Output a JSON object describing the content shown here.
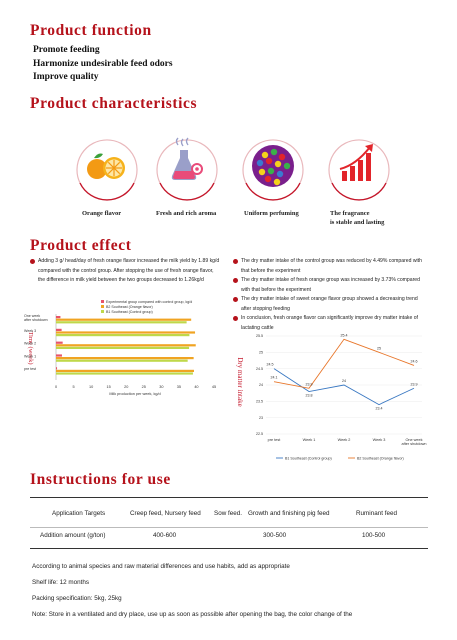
{
  "function": {
    "title": "Product function",
    "items": [
      "Promote feeding",
      "Harmonize undesirable feed odors",
      "Improve quality"
    ]
  },
  "characteristics": {
    "title": "Product characteristics",
    "items": [
      {
        "label": "Orange flavor",
        "icon": "orange-icon"
      },
      {
        "label": "Fresh and rich aroma",
        "icon": "aroma-flask-icon"
      },
      {
        "label": "Uniform perfuming",
        "icon": "colored-dots-icon"
      },
      {
        "label": "The fragrance is stable and lasting",
        "label_line1": "The fragrance",
        "label_line2": "is stable and lasting",
        "icon": "growth-arrow-icon"
      }
    ],
    "accent_color": "#b5121b"
  },
  "effect": {
    "title": "Product effect",
    "left_bullets": [
      "Adding 3 g/ head/day of fresh orange flavor increased the milk yield by 1.89 kg/d compared with the control group. After stopping the use of fresh orange flavor, the difference in milk yield between the two groups decreased to 1.26kg/d"
    ],
    "right_bullets": [
      "The dry matter intake of the control group was reduced by 4.49% compared with that before the experiment",
      "The dry matter intake of fresh orange group was increased by 3.73% compared with that before the experiment",
      "The dry matter intake of sweet orange flavor group showed a decreasing trend after stopping feeding",
      "In conclusion, fresh orange flavor can significantly improve dry matter intake of lactating cattle"
    ]
  },
  "chart_data": [
    {
      "type": "bar",
      "orientation": "horizontal",
      "categories": [
        "One week after shutdown",
        "Week 3",
        "Week 2",
        "Week 1",
        "pre test"
      ],
      "series": [
        {
          "name": "Experimental group compared with control group, kg/d",
          "color": "#e8546a",
          "values": [
            1.26,
            1.6,
            1.9,
            1.7,
            0.3
          ]
        },
        {
          "name": "B2 Southeast (Orange flavor)",
          "color": "#f0a422",
          "values": [
            38.5,
            39.6,
            39.8,
            39.2,
            39.3
          ]
        },
        {
          "name": "B1 Southeast (Control group)",
          "color": "#bfd84a",
          "values": [
            37.2,
            38.0,
            37.9,
            37.5,
            39.0
          ]
        }
      ],
      "xlabel": "Milk production per week, kg/d",
      "ylabel": "Time (week)",
      "xlim": [
        0,
        45
      ],
      "xticks": [
        0,
        5,
        10,
        15,
        20,
        25,
        30,
        35,
        40,
        45
      ],
      "legend": "top"
    },
    {
      "type": "line",
      "categories": [
        "pre test",
        "Week 1",
        "Week 2",
        "Week 3",
        "One week after shutdown"
      ],
      "series": [
        {
          "name": "B1 Southeast (Control group)",
          "color": "#3a78c2",
          "values": [
            24.5,
            23.8,
            24.0,
            23.4,
            23.9
          ],
          "labels": [
            "24.5",
            "23.8",
            "24",
            "23.4",
            "23.9"
          ]
        },
        {
          "name": "B2 Southeast (Orange flavor)",
          "color": "#e8762a",
          "values": [
            24.1,
            23.9,
            25.4,
            25.0,
            24.6
          ],
          "labels": [
            "24.1",
            "23.9",
            "25.4",
            "25",
            "24.6"
          ]
        }
      ],
      "ylabel": "Dry matter intake",
      "ylim": [
        22.5,
        25.5
      ],
      "yticks": [
        22.5,
        23,
        23.5,
        24,
        24.5,
        25,
        25.5
      ],
      "legend": "bottom"
    }
  ],
  "instructions": {
    "title": "Instructions for use",
    "row1": {
      "label": "Application Targets",
      "c1": "Creep feed, Nursery feed",
      "c2": "Sow feed.",
      "c3": "Growth and finishing pig feed",
      "c4": "Ruminant feed"
    },
    "row2": {
      "label": "Addition amount (g/ton)",
      "c1": "400-600",
      "c2": "300-500",
      "c3": "100-500"
    },
    "notes": [
      "According to animal species and raw material differences and use habits, add as appropriate",
      "Shelf life: 12 months",
      "Packing specification: 5kg, 25kg",
      "Note: Store in a ventilated and dry place, use up as soon as possible after opening the bag, the color change of the"
    ]
  }
}
